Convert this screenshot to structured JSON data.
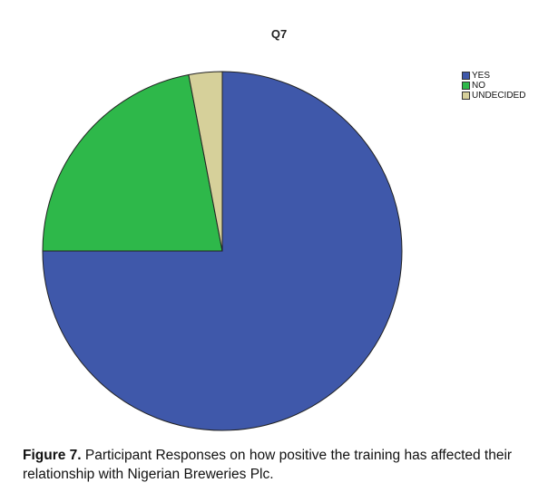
{
  "chart_data": {
    "type": "pie",
    "title": "Q7",
    "categories": [
      "YES",
      "NO",
      "UNDECIDED"
    ],
    "values": [
      75,
      22,
      3
    ],
    "colors": [
      "#3f58aa",
      "#2eb84a",
      "#d6d09a"
    ],
    "legend": "top-right"
  },
  "caption": {
    "label": "Figure 7.",
    "text": " Participant Responses on how positive the training has affected their relationship with Nigerian Breweries Plc."
  }
}
